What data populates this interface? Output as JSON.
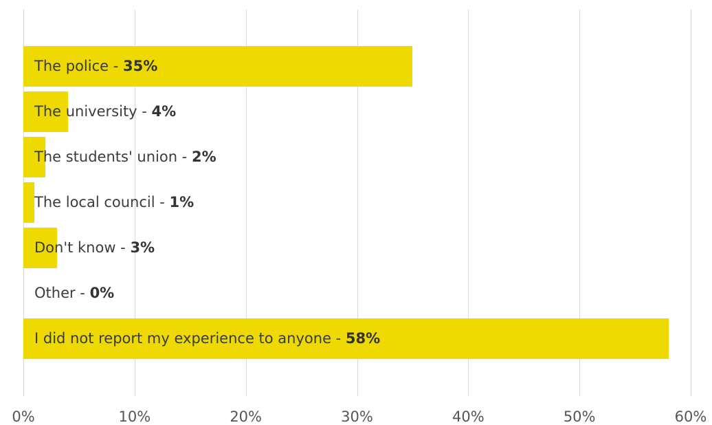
{
  "chart_data": {
    "type": "bar",
    "orientation": "horizontal",
    "categories": [
      "The police",
      "The university",
      "The students' union",
      "The local council",
      "Don't know",
      "Other",
      "I did not report my experience to anyone"
    ],
    "values": [
      35,
      4,
      2,
      1,
      3,
      0,
      58
    ],
    "value_labels": [
      "35%",
      "4%",
      "2%",
      "1%",
      "3%",
      "0%",
      "58%"
    ],
    "xlim": [
      0,
      60
    ],
    "x_ticks": [
      0,
      10,
      20,
      30,
      40,
      50,
      60
    ],
    "x_tick_labels": [
      "0%",
      "10%",
      "20%",
      "30%",
      "40%",
      "50%",
      "60%"
    ],
    "grid": true,
    "bar_color": "#eed900",
    "title": "",
    "xlabel": "",
    "ylabel": ""
  }
}
